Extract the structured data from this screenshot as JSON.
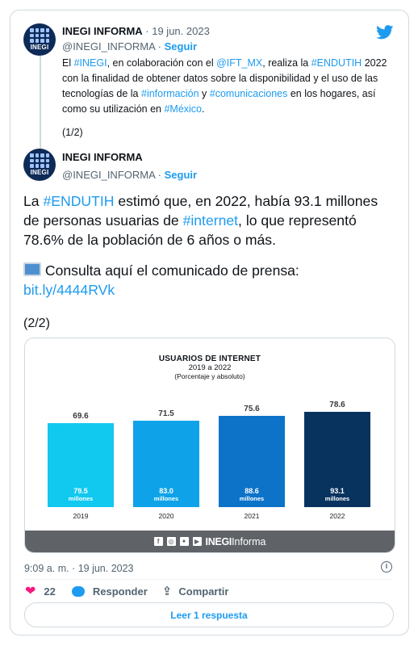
{
  "tweet1": {
    "name": "INEGI INFORMA",
    "date": "19 jun. 2023",
    "handle": "@INEGI_INFORMA",
    "follow": "Seguir",
    "avatar_label": "INEGI",
    "line1_a": "El ",
    "tag_inegi": "#INEGI",
    "line1_b": ", en colaboración con el ",
    "tag_ift": "@IFT_MX",
    "line1_c": ", realiza la ",
    "tag_endutih": "#ENDUTIH",
    "line1_d": " 2022 con la finalidad de obtener datos sobre la disponibilidad y el uso de las tecnologías de la ",
    "tag_informacion": "#información",
    "line1_e": " y ",
    "tag_comunicaciones": "#comunicaciones",
    "line1_f": " en los hogares, así como su utilización en ",
    "tag_mexico": "#México",
    "line1_g": ".",
    "counter": "(1/2)"
  },
  "tweet2": {
    "name": "INEGI INFORMA",
    "handle": "@INEGI_INFORMA",
    "follow": "Seguir",
    "avatar_label": "INEGI",
    "p1_a": "La ",
    "tag_endutih": "#ENDUTIH",
    "p1_b": " estimó que, en 2022, había 93.1 millones de personas usuarias de ",
    "tag_internet": "#internet",
    "p1_c": ", lo que representó 78.6% de la población de 6 años o más.",
    "p2": " Consulta aquí el comunicado de prensa:",
    "link": "bit.ly/4444RVk",
    "counter": "(2/2)",
    "timestamp": "9:09 a. m. · 19 jun. 2023",
    "likes": "22",
    "reply": "Responder",
    "share": "Compartir",
    "read_replies": "Leer 1 respuesta"
  },
  "chart_data": {
    "type": "bar",
    "title": "USUARIOS DE INTERNET",
    "subtitle": "2019 a 2022",
    "note": "(Porcentaje y absoluto)",
    "categories": [
      "2019",
      "2020",
      "2021",
      "2022"
    ],
    "values": [
      69.6,
      71.5,
      75.6,
      78.6
    ],
    "absolute": [
      "79.5",
      "83.0",
      "88.6",
      "93.1"
    ],
    "absolute_unit": "millones",
    "colors": [
      "#11c8ef",
      "#0ea3e8",
      "#0d73c9",
      "#08335f"
    ],
    "ylim": [
      0,
      80
    ],
    "footer_brand_bold": "INEGI",
    "footer_brand": "Informa"
  }
}
